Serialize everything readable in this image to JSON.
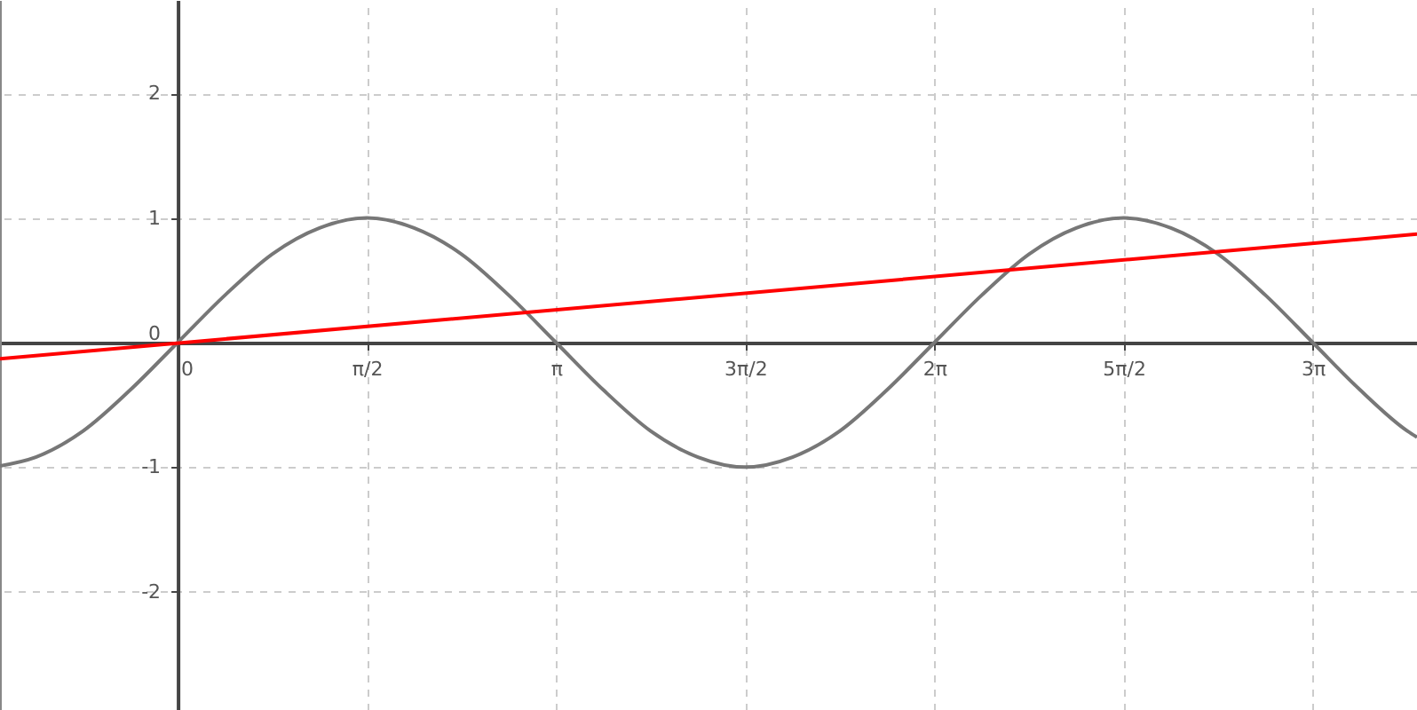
{
  "chart_data": {
    "type": "line",
    "xlim": [
      -1.475,
      10.29
    ],
    "ylim": [
      -2.95,
      2.75
    ],
    "xticks": [
      {
        "value": 0,
        "label": "0"
      },
      {
        "value": 1.5708,
        "label": "π/2"
      },
      {
        "value": 3.1416,
        "label": "π"
      },
      {
        "value": 4.7124,
        "label": "3π/2"
      },
      {
        "value": 6.2832,
        "label": "2π"
      },
      {
        "value": 7.854,
        "label": "5π/2"
      },
      {
        "value": 9.4248,
        "label": "3π"
      }
    ],
    "yticks": [
      -2,
      -1,
      0,
      1,
      2
    ],
    "grid": true,
    "line_style": "solid",
    "series": [
      {
        "color": "#777777",
        "x": [
          -1.475,
          -1.178,
          -0.785,
          -0.393,
          0,
          0.393,
          0.785,
          1.178,
          1.571,
          1.963,
          2.356,
          2.749,
          3.142,
          3.534,
          3.927,
          4.32,
          4.712,
          5.105,
          5.498,
          5.89,
          6.283,
          6.676,
          7.069,
          7.461,
          7.854,
          8.247,
          8.639,
          9.032,
          9.425,
          9.817,
          10.21,
          10.29
        ],
        "values": [
          -0.99,
          -0.92,
          -0.71,
          -0.38,
          0,
          0.38,
          0.71,
          0.92,
          1,
          0.92,
          0.71,
          0.38,
          0,
          -0.38,
          -0.71,
          -0.92,
          -1,
          -0.92,
          -0.71,
          -0.38,
          0,
          0.38,
          0.71,
          0.92,
          1,
          0.92,
          0.71,
          0.38,
          0,
          -0.38,
          -0.71,
          -0.76
        ]
      },
      {
        "color": "#ff0000",
        "x": [
          -1.475,
          10.29
        ],
        "values": [
          -0.13,
          0.87
        ]
      }
    ]
  }
}
